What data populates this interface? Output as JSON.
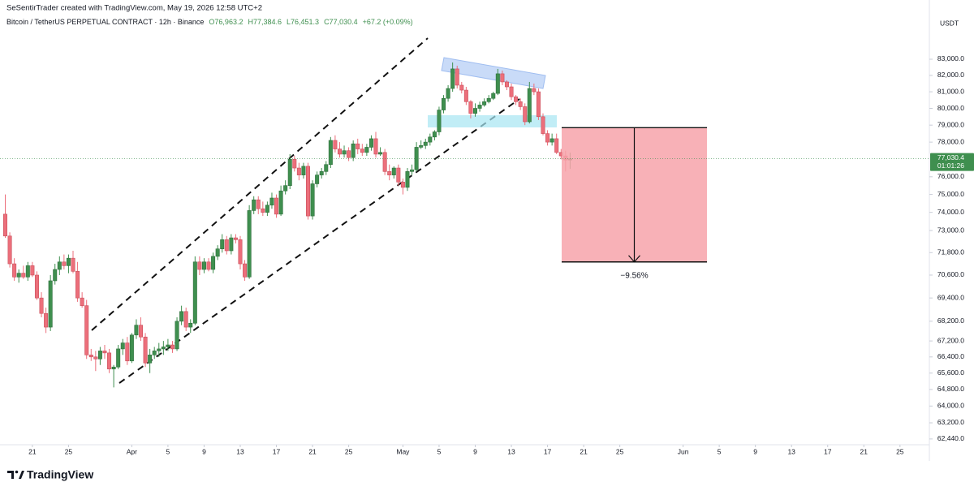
{
  "header": {
    "credit": "SeSentirTrader created with TradingView.com, May 19, 2026 12:58 UTC+2",
    "symbol": "Bitcoin / TetherUS PERPETUAL CONTRACT · 12h · Binance",
    "legend_items": [
      "O76,963.2",
      "H77,384.6",
      "L76,451.3",
      "C77,030.4",
      "+67.2 (+0.09%)"
    ]
  },
  "footer": {
    "brand": "TradingView"
  },
  "chart_data": {
    "type": "candlestick",
    "currency": "USDT",
    "log": true,
    "grid": false,
    "up_color": "#3f8f4f",
    "down_color": "#ec6f7b",
    "x": [
      "03-18 00:00",
      "03-18 12:00",
      "03-19 00:00",
      "03-19 12:00",
      "03-20 00:00",
      "03-20 12:00",
      "03-21 00:00",
      "03-21 12:00",
      "03-22 00:00",
      "03-22 12:00",
      "03-23 00:00",
      "03-23 12:00",
      "03-24 00:00",
      "03-24 12:00",
      "03-25 00:00",
      "03-25 12:00",
      "03-26 00:00",
      "03-26 12:00",
      "03-27 00:00",
      "03-27 12:00",
      "03-28 00:00",
      "03-28 12:00",
      "03-29 00:00",
      "03-29 12:00",
      "03-30 00:00",
      "03-30 12:00",
      "03-31 00:00",
      "03-31 12:00",
      "04-01 00:00",
      "04-01 12:00",
      "04-02 00:00",
      "04-02 12:00",
      "04-03 00:00",
      "04-03 12:00",
      "04-04 00:00",
      "04-04 12:00",
      "04-05 00:00",
      "04-05 12:00",
      "04-06 00:00",
      "04-06 12:00",
      "04-07 00:00",
      "04-07 12:00",
      "04-08 00:00",
      "04-08 12:00",
      "04-09 00:00",
      "04-09 12:00",
      "04-10 00:00",
      "04-10 12:00",
      "04-11 00:00",
      "04-11 12:00",
      "04-12 00:00",
      "04-12 12:00",
      "04-13 00:00",
      "04-13 12:00",
      "04-14 00:00",
      "04-14 12:00",
      "04-15 00:00",
      "04-15 12:00",
      "04-16 00:00",
      "04-16 12:00",
      "04-17 00:00",
      "04-17 12:00",
      "04-18 00:00",
      "04-18 12:00",
      "04-19 00:00",
      "04-19 12:00",
      "04-20 00:00",
      "04-20 12:00",
      "04-21 00:00",
      "04-21 12:00",
      "04-22 00:00",
      "04-22 12:00",
      "04-23 00:00",
      "04-23 12:00",
      "04-24 00:00",
      "04-24 12:00",
      "04-25 00:00",
      "04-25 12:00",
      "04-26 00:00",
      "04-26 12:00",
      "04-27 00:00",
      "04-27 12:00",
      "04-28 00:00",
      "04-28 12:00",
      "04-29 00:00",
      "04-29 12:00",
      "04-30 00:00",
      "04-30 12:00",
      "05-01 00:00",
      "05-01 12:00",
      "05-02 00:00",
      "05-02 12:00",
      "05-03 00:00",
      "05-03 12:00",
      "05-04 00:00",
      "05-04 12:00",
      "05-05 00:00",
      "05-05 12:00",
      "05-06 00:00",
      "05-06 12:00",
      "05-07 00:00",
      "05-07 12:00",
      "05-08 00:00",
      "05-08 12:00",
      "05-09 00:00",
      "05-09 12:00",
      "05-10 00:00",
      "05-10 12:00",
      "05-11 00:00",
      "05-11 12:00",
      "05-12 00:00",
      "05-12 12:00",
      "05-13 00:00",
      "05-13 12:00",
      "05-14 00:00",
      "05-14 12:00",
      "05-15 00:00",
      "05-15 12:00",
      "05-16 00:00",
      "05-16 12:00",
      "05-17 00:00",
      "05-17 12:00",
      "05-18 00:00",
      "05-18 12:00",
      "05-19 00:00",
      "05-19 12:00"
    ],
    "open": [
      73900,
      72700,
      71200,
      70500,
      70700,
      70500,
      71100,
      70600,
      69400,
      68600,
      67900,
      70300,
      70900,
      71300,
      71100,
      71500,
      70800,
      69400,
      69000,
      66500,
      66400,
      66300,
      66700,
      66600,
      65800,
      65900,
      66800,
      67100,
      66200,
      67500,
      68000,
      67400,
      66100,
      66500,
      66700,
      66800,
      66900,
      67000,
      66800,
      68200,
      68700,
      67900,
      68100,
      71300,
      70900,
      71300,
      70900,
      71600,
      72000,
      72500,
      71900,
      72600,
      72500,
      71200,
      70500,
      74100,
      74700,
      74200,
      74000,
      74400,
      74800,
      73900,
      75200,
      75500,
      77000,
      76500,
      76100,
      76600,
      73800,
      75600,
      76100,
      76300,
      76700,
      78100,
      77600,
      77300,
      77500,
      77100,
      77900,
      77600,
      77400,
      77700,
      78200,
      77300,
      77400,
      76300,
      76100,
      76500,
      75700,
      75400,
      76300,
      76400,
      77700,
      77800,
      78000,
      78300,
      78600,
      79900,
      80600,
      81200,
      82400,
      81400,
      81100,
      80400,
      79700,
      80000,
      80200,
      80400,
      80600,
      80900,
      82100,
      81600,
      81300,
      80700,
      80400,
      80100,
      79200,
      81200,
      81000,
      79500,
      78500,
      78000,
      78200,
      77400,
      77200,
      76963.2
    ],
    "high": [
      75000,
      72900,
      71500,
      70900,
      71100,
      71300,
      71300,
      70800,
      69700,
      68900,
      70600,
      71200,
      71600,
      71700,
      71700,
      71900,
      71300,
      69700,
      69300,
      66800,
      66700,
      66900,
      67000,
      66800,
      66000,
      67000,
      67300,
      67400,
      67600,
      68300,
      68400,
      67600,
      66800,
      66900,
      67100,
      67200,
      67300,
      67200,
      68400,
      69000,
      68900,
      68300,
      71600,
      71600,
      71500,
      71500,
      71800,
      72200,
      72800,
      72700,
      72800,
      72800,
      72700,
      71400,
      74400,
      74900,
      74900,
      74600,
      74600,
      75100,
      75000,
      75500,
      75800,
      77300,
      77200,
      76800,
      76800,
      76800,
      75800,
      76300,
      76500,
      76900,
      78300,
      78400,
      78000,
      77800,
      77700,
      78100,
      78200,
      77900,
      77900,
      78400,
      78600,
      77700,
      77600,
      76700,
      76600,
      76700,
      75900,
      76500,
      76700,
      78000,
      78100,
      78200,
      78500,
      78700,
      80100,
      80800,
      81400,
      82800,
      82600,
      81600,
      81300,
      80500,
      80300,
      80400,
      80600,
      80800,
      81000,
      82400,
      82300,
      81700,
      81500,
      80800,
      80600,
      80300,
      81600,
      81500,
      81200,
      79700,
      78700,
      78500,
      78500,
      77600,
      77500,
      77384.6
    ],
    "low": [
      72600,
      71000,
      70300,
      70200,
      70400,
      70300,
      70500,
      69300,
      68400,
      67600,
      67700,
      70100,
      70600,
      70900,
      70700,
      70700,
      69200,
      68900,
      66300,
      66200,
      65700,
      66000,
      66300,
      65600,
      64900,
      65800,
      66500,
      66000,
      66100,
      67300,
      67200,
      65900,
      65600,
      66300,
      66400,
      66500,
      66700,
      66600,
      66700,
      68000,
      67700,
      67600,
      68000,
      70600,
      70700,
      70800,
      70700,
      71400,
      71800,
      71700,
      71700,
      72300,
      70900,
      70300,
      70400,
      73900,
      73900,
      73800,
      73800,
      74200,
      73700,
      73800,
      75000,
      75300,
      76300,
      75800,
      75900,
      73600,
      73600,
      75400,
      75900,
      76100,
      76500,
      77400,
      77100,
      77100,
      76900,
      76900,
      77300,
      77200,
      77200,
      77500,
      77100,
      77200,
      76100,
      75800,
      75900,
      75500,
      75000,
      75200,
      76100,
      76300,
      77600,
      77600,
      77800,
      78100,
      78400,
      79700,
      80400,
      81000,
      81200,
      80900,
      80200,
      79400,
      79500,
      79800,
      80100,
      80300,
      80500,
      80800,
      81400,
      81100,
      80500,
      80200,
      79900,
      79000,
      79100,
      80800,
      79300,
      78400,
      77800,
      77800,
      77300,
      77000,
      76300,
      76451.3
    ],
    "close": [
      72700,
      71200,
      70500,
      70700,
      70500,
      71100,
      70600,
      69400,
      68600,
      67900,
      70300,
      70900,
      71300,
      71100,
      71500,
      70800,
      69400,
      69000,
      66500,
      66400,
      66300,
      66700,
      66600,
      65800,
      65900,
      66800,
      67100,
      66200,
      67500,
      68000,
      67400,
      66100,
      66500,
      66700,
      66800,
      66900,
      67000,
      66800,
      68200,
      68700,
      67900,
      68100,
      71300,
      70900,
      71300,
      70900,
      71600,
      72000,
      72500,
      71900,
      72600,
      72500,
      71200,
      70500,
      74100,
      74700,
      74200,
      74000,
      74400,
      74800,
      73900,
      75200,
      75500,
      77000,
      76500,
      76100,
      76600,
      73800,
      75600,
      76100,
      76300,
      76700,
      78100,
      77600,
      77300,
      77500,
      77100,
      77900,
      77600,
      77400,
      77700,
      78200,
      77300,
      77400,
      76300,
      76100,
      76500,
      75700,
      75400,
      76300,
      76400,
      77700,
      77800,
      78000,
      78300,
      78600,
      79900,
      80600,
      81200,
      82400,
      81400,
      81100,
      80400,
      79700,
      80000,
      80200,
      80400,
      80600,
      80900,
      82100,
      81600,
      81300,
      80700,
      80400,
      80100,
      79200,
      81200,
      81000,
      79500,
      78500,
      78000,
      78200,
      77400,
      77200,
      76963.2,
      77030.4
    ],
    "last_price": {
      "value": 77030.4,
      "label": "77,030.4"
    },
    "countdown": "01:01:26",
    "measure": {
      "from": 78850,
      "to": 71300,
      "label": "−9.56%"
    },
    "ylim": [
      62170,
      85980
    ],
    "yticks": [
      {
        "value": 83000,
        "label": "83,000.0"
      },
      {
        "value": 82000,
        "label": "82,000.0"
      },
      {
        "value": 81000,
        "label": "81,000.0"
      },
      {
        "value": 80000,
        "label": "80,000.0"
      },
      {
        "value": 79000,
        "label": "79,000.0"
      },
      {
        "value": 78000,
        "label": "78,000.0"
      },
      {
        "value": 76000,
        "label": "76,000.0"
      },
      {
        "value": 75000,
        "label": "75,000.0"
      },
      {
        "value": 74000,
        "label": "74,000.0"
      },
      {
        "value": 73000,
        "label": "73,000.0"
      },
      {
        "value": 71800,
        "label": "71,800.0"
      },
      {
        "value": 70600,
        "label": "70,600.0"
      },
      {
        "value": 69400,
        "label": "69,400.0"
      },
      {
        "value": 68200,
        "label": "68,200.0"
      },
      {
        "value": 67200,
        "label": "67,200.0"
      },
      {
        "value": 66400,
        "label": "66,400.0"
      },
      {
        "value": 65600,
        "label": "65,600.0"
      },
      {
        "value": 64800,
        "label": "64,800.0"
      },
      {
        "value": 64000,
        "label": "64,000.0"
      },
      {
        "value": 63200,
        "label": "63,200.0"
      },
      {
        "value": 62440,
        "label": "62,440.0"
      }
    ],
    "xlim": [
      "03-17 10:00",
      "06-28 06:00"
    ],
    "xticks": [
      {
        "value": "03-21",
        "label": "21"
      },
      {
        "value": "03-25",
        "label": "25"
      },
      {
        "value": "04-01",
        "label": "Apr"
      },
      {
        "value": "04-05",
        "label": "5"
      },
      {
        "value": "04-09",
        "label": "9"
      },
      {
        "value": "04-13",
        "label": "13"
      },
      {
        "value": "04-17",
        "label": "17"
      },
      {
        "value": "04-21",
        "label": "21"
      },
      {
        "value": "04-25",
        "label": "25"
      },
      {
        "value": "05-01",
        "label": "May"
      },
      {
        "value": "05-05",
        "label": "5"
      },
      {
        "value": "05-09",
        "label": "9"
      },
      {
        "value": "05-13",
        "label": "13"
      },
      {
        "value": "05-17",
        "label": "17"
      },
      {
        "value": "05-21",
        "label": "21"
      },
      {
        "value": "05-25",
        "label": "25"
      },
      {
        "value": "06-01",
        "label": "Jun"
      },
      {
        "value": "06-05",
        "label": "5"
      },
      {
        "value": "06-09",
        "label": "9"
      },
      {
        "value": "06-13",
        "label": "13"
      },
      {
        "value": "06-17",
        "label": "17"
      },
      {
        "value": "06-21",
        "label": "21"
      },
      {
        "value": "06-25",
        "label": "25"
      }
    ]
  }
}
